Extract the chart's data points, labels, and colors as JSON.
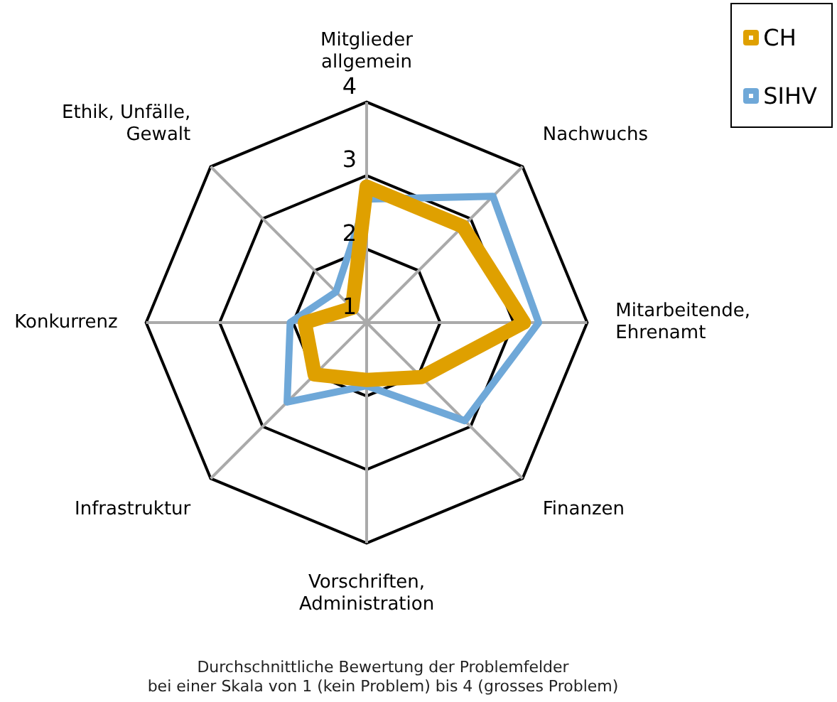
{
  "chart_data": {
    "type": "radar",
    "title": "Durchschnittliche Bewertung der Problemfelder\nbei einer Skala von 1 (kein Problem) bis 4 (grosses Problem)",
    "categories": [
      "Mitglieder\nallgemein",
      "Nachwuchs",
      "Mitarbeitende,\nEhrenamt",
      "Finanzen",
      "Vorschriften,\nAdministration",
      "Infrastruktur",
      "Konkurrenz",
      "Ethik, Unfälle,\nGewalt"
    ],
    "series": [
      {
        "name": "CH",
        "color": "#dfa000",
        "values": [
          2.85,
          2.85,
          3.14,
          2.05,
          1.78,
          2.0,
          1.84,
          1.28
        ]
      },
      {
        "name": "SIHV",
        "color": "#6fa8d8",
        "values": [
          2.68,
          3.43,
          3.34,
          2.89,
          1.86,
          2.53,
          2.04,
          1.59
        ]
      }
    ],
    "ylim": [
      1,
      4
    ],
    "yticks": [
      1,
      2,
      3,
      4
    ],
    "legend": "top right",
    "marker": "none"
  }
}
